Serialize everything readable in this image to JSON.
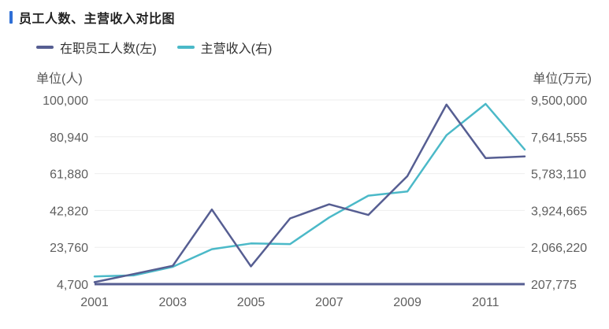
{
  "title": "员工人数、主营收入对比图",
  "colors": {
    "accent": "#2f6fd6",
    "employees": "#565e92",
    "revenue": "#4bb9c8",
    "grid": "#eeeeee",
    "axis": "#565e92"
  },
  "chart_data": {
    "type": "line",
    "x": [
      "2001",
      "2002",
      "2003",
      "2004",
      "2005",
      "2006",
      "2007",
      "2008",
      "2009",
      "2010",
      "2011",
      "2012"
    ],
    "x_tick_labels": [
      "2001",
      "2003",
      "2005",
      "2007",
      "2009",
      "2011"
    ],
    "series": [
      {
        "name": "在职员工人数(左)",
        "axis": "left",
        "values": [
          5700,
          9900,
          14200,
          43300,
          13900,
          38700,
          46000,
          40500,
          60600,
          97600,
          69900,
          70800
        ]
      },
      {
        "name": "主营收入(右)",
        "axis": "right",
        "values": [
          595000,
          650000,
          1080000,
          1970000,
          2260000,
          2230000,
          3570000,
          4670000,
          4880000,
          7720000,
          9300000,
          7000000
        ]
      }
    ],
    "left_axis": {
      "unit": "单位(人)",
      "range": [
        4700,
        100000
      ],
      "ticks": [
        "4,700",
        "23,760",
        "42,820",
        "61,880",
        "80,940",
        "100,000"
      ]
    },
    "right_axis": {
      "unit": "单位(万元)",
      "range": [
        207775,
        9500000
      ],
      "ticks": [
        "207,775",
        "2,066,220",
        "3,924,665",
        "5,783,110",
        "7,641,555",
        "9,500,000"
      ]
    },
    "grid": true,
    "legend_position": "top-left"
  }
}
